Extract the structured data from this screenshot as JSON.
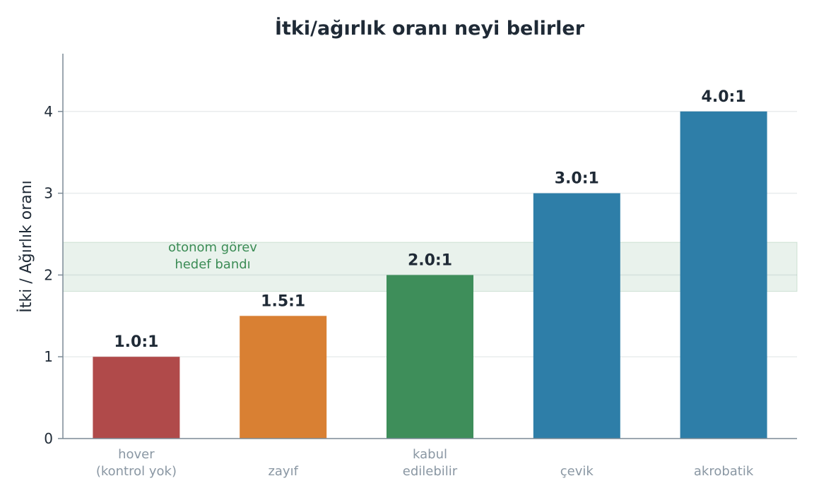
{
  "chart_data": {
    "type": "bar",
    "title": "İtki/ağırlık oranı neyi belirler",
    "xlabel": "",
    "ylabel": "İtki / Ağırlık oranı",
    "ylim": [
      0,
      4.7
    ],
    "yticks": [
      0,
      1,
      2,
      3,
      4
    ],
    "grid": true,
    "categories": [
      [
        "hover",
        "(kontrol yok)"
      ],
      [
        "zayıf"
      ],
      [
        "kabul",
        "edilebilir"
      ],
      [
        "çevik"
      ],
      [
        "akrobatik"
      ]
    ],
    "values": [
      1.0,
      1.5,
      2.0,
      3.0,
      4.0
    ],
    "value_labels": [
      "1.0:1",
      "1.5:1",
      "2.0:1",
      "3.0:1",
      "4.0:1"
    ],
    "bar_colors": [
      "#b04a4a",
      "#d98033",
      "#3e8e5a",
      "#2e7ea8",
      "#2e7ea8"
    ],
    "target_band": {
      "y_from": 1.8,
      "y_to": 2.4,
      "label": [
        "otonom görev",
        "hedef bandı"
      ],
      "color": "#3b8c55"
    },
    "colors": {
      "axis": "#7c8a96",
      "grid": "#e9eced",
      "text": "#1f2a36",
      "tick_label": "#8a97a3"
    }
  }
}
